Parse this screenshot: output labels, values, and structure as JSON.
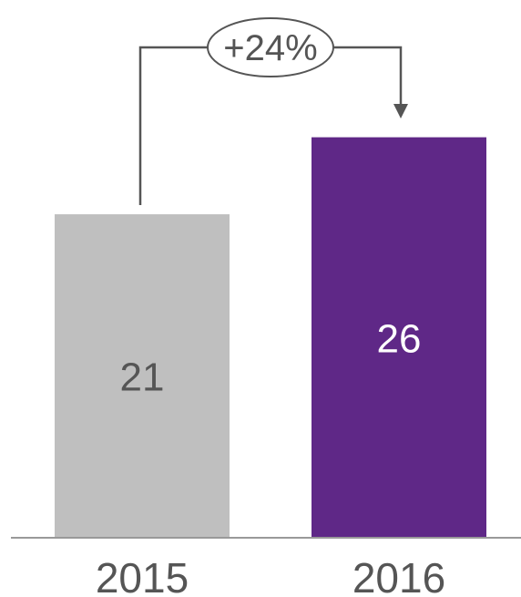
{
  "chart_data": {
    "type": "bar",
    "categories": [
      "2015",
      "2016"
    ],
    "values": [
      21,
      26
    ],
    "value_labels": [
      "21",
      "26"
    ],
    "bar_colors": [
      "#bfbfbf",
      "#5f2887"
    ],
    "ylim": [
      0,
      40
    ],
    "grid": false,
    "annotation": {
      "text": "+24%",
      "from": "2015",
      "to": "2016"
    }
  },
  "colors": {
    "baseline": "#999999",
    "connector": "#555555",
    "label_on_light": "#555555",
    "label_on_dark": "#ffffff",
    "tick_label": "#555555"
  }
}
